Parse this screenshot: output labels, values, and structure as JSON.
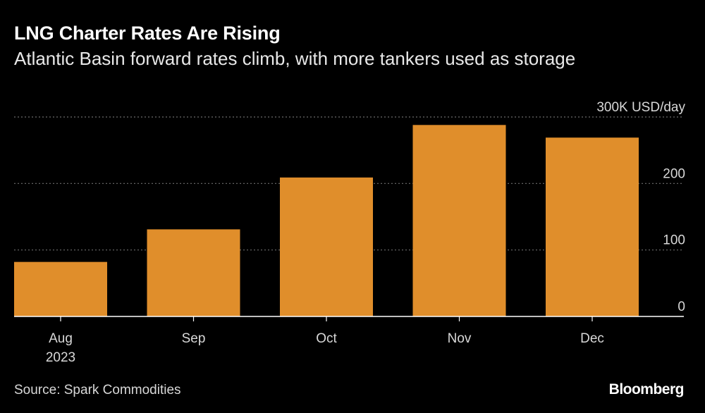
{
  "header": {
    "title": "LNG Charter Rates Are Rising",
    "subtitle": "Atlantic Basin forward rates climb, with more tankers used as storage"
  },
  "footer": {
    "source": "Source: Spark Commodities",
    "brand": "Bloomberg"
  },
  "colors": {
    "background": "#000000",
    "bar": "#e08e2b",
    "gridline": "#6e6e6e",
    "axis": "#ffffff",
    "text": "#ffffff"
  },
  "chart_data": {
    "type": "bar",
    "categories": [
      "Aug",
      "Sep",
      "Oct",
      "Nov",
      "Dec"
    ],
    "x_tick_labels": [
      [
        "Aug",
        "2023"
      ],
      [
        "Sep"
      ],
      [
        "Oct"
      ],
      [
        "Nov"
      ],
      [
        "Dec"
      ]
    ],
    "values": [
      82,
      131,
      209,
      288,
      269
    ],
    "unit_label": "USD/day",
    "ylim": [
      0,
      300
    ],
    "yticks": [
      0,
      100,
      200,
      300
    ],
    "ytick_labels": [
      "0",
      "100",
      "200",
      "300K USD/day"
    ],
    "grid": true,
    "legend": "none"
  }
}
